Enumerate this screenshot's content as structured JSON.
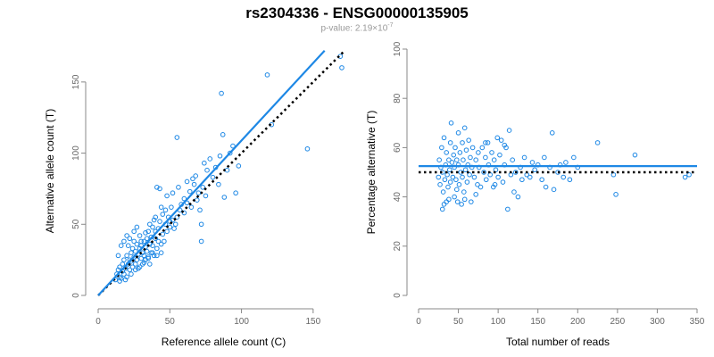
{
  "header": {
    "title": "rs2304336 - ENSG00000135905",
    "subtitle_prefix": "p-value: 2.19×10",
    "subtitle_exponent": "-7"
  },
  "colors": {
    "points": "#1e88e5",
    "fit_line": "#1e88e5",
    "reference_line": "#000000",
    "axis": "#888888"
  },
  "chart_data": [
    {
      "type": "scatter",
      "xlabel": "Reference allele count (C)",
      "ylabel": "Alternative allele count (T)",
      "xlim": [
        0,
        175
      ],
      "ylim": [
        0,
        175
      ],
      "x_ticks": [
        0,
        50,
        100,
        150
      ],
      "y_ticks": [
        0,
        50,
        100,
        150
      ],
      "points": [
        [
          12,
          11
        ],
        [
          13,
          15
        ],
        [
          14,
          18
        ],
        [
          15,
          13
        ],
        [
          15,
          20
        ],
        [
          16,
          12
        ],
        [
          17,
          17
        ],
        [
          17,
          22
        ],
        [
          18,
          15
        ],
        [
          18,
          25
        ],
        [
          19,
          19
        ],
        [
          20,
          13
        ],
        [
          20,
          28
        ],
        [
          21,
          22
        ],
        [
          21,
          35
        ],
        [
          22,
          18
        ],
        [
          22,
          40
        ],
        [
          23,
          24
        ],
        [
          23,
          30
        ],
        [
          24,
          20
        ],
        [
          24,
          33
        ],
        [
          25,
          27
        ],
        [
          25,
          38
        ],
        [
          26,
          22
        ],
        [
          26,
          31
        ],
        [
          27,
          25
        ],
        [
          27,
          36
        ],
        [
          28,
          29
        ],
        [
          28,
          19
        ],
        [
          29,
          33
        ],
        [
          29,
          42
        ],
        [
          30,
          26
        ],
        [
          30,
          35
        ],
        [
          31,
          30
        ],
        [
          31,
          22
        ],
        [
          32,
          38
        ],
        [
          32,
          28
        ],
        [
          33,
          34
        ],
        [
          33,
          25
        ],
        [
          34,
          40
        ],
        [
          34,
          31
        ],
        [
          35,
          27
        ],
        [
          35,
          45
        ],
        [
          36,
          36
        ],
        [
          36,
          22
        ],
        [
          37,
          41
        ],
        [
          37,
          30
        ],
        [
          38,
          48
        ],
        [
          38,
          35
        ],
        [
          39,
          28
        ],
        [
          39,
          53
        ],
        [
          40,
          40
        ],
        [
          40,
          45
        ],
        [
          41,
          33
        ],
        [
          41,
          76
        ],
        [
          42,
          47
        ],
        [
          42,
          38
        ],
        [
          43,
          52
        ],
        [
          43,
          75
        ],
        [
          44,
          30
        ],
        [
          45,
          43
        ],
        [
          45,
          57
        ],
        [
          46,
          38
        ],
        [
          47,
          60
        ],
        [
          47,
          50
        ],
        [
          48,
          45
        ],
        [
          49,
          55
        ],
        [
          50,
          48
        ],
        [
          50,
          52
        ],
        [
          51,
          62
        ],
        [
          52,
          53
        ],
        [
          53,
          47
        ],
        [
          54,
          50
        ],
        [
          55,
          55
        ],
        [
          55,
          111
        ],
        [
          57,
          60
        ],
        [
          58,
          64
        ],
        [
          60,
          58
        ],
        [
          60,
          68
        ],
        [
          62,
          65
        ],
        [
          64,
          73
        ],
        [
          65,
          62
        ],
        [
          66,
          82
        ],
        [
          67,
          78
        ],
        [
          68,
          84
        ],
        [
          69,
          67
        ],
        [
          70,
          72
        ],
        [
          71,
          60
        ],
        [
          72,
          50
        ],
        [
          72,
          38
        ],
        [
          73,
          76
        ],
        [
          74,
          93
        ],
        [
          75,
          70
        ],
        [
          76,
          88
        ],
        [
          78,
          96
        ],
        [
          80,
          83
        ],
        [
          82,
          90
        ],
        [
          84,
          78
        ],
        [
          85,
          98
        ],
        [
          86,
          142
        ],
        [
          87,
          113
        ],
        [
          88,
          69
        ],
        [
          90,
          88
        ],
        [
          92,
          100
        ],
        [
          94,
          105
        ],
        [
          96,
          72
        ],
        [
          98,
          91
        ],
        [
          118,
          155
        ],
        [
          121,
          120
        ],
        [
          146,
          103
        ],
        [
          169,
          168
        ],
        [
          170,
          160
        ],
        [
          14,
          28
        ],
        [
          16,
          35
        ],
        [
          18,
          38
        ],
        [
          20,
          42
        ],
        [
          22,
          25
        ],
        [
          25,
          45
        ],
        [
          27,
          48
        ],
        [
          30,
          38
        ],
        [
          33,
          44
        ],
        [
          36,
          50
        ],
        [
          40,
          55
        ],
        [
          44,
          62
        ],
        [
          48,
          70
        ],
        [
          52,
          72
        ],
        [
          56,
          76
        ],
        [
          62,
          80
        ],
        [
          15,
          10
        ],
        [
          19,
          11
        ],
        [
          23,
          15
        ],
        [
          26,
          18
        ],
        [
          29,
          20
        ],
        [
          32,
          23
        ],
        [
          35,
          26
        ],
        [
          38,
          30
        ],
        [
          41,
          28
        ],
        [
          44,
          36
        ]
      ],
      "fit_line": {
        "x": [
          0,
          158
        ],
        "y": [
          0,
          172
        ]
      },
      "reference_line": {
        "x": [
          0,
          172
        ],
        "y": [
          0,
          172
        ]
      }
    },
    {
      "type": "scatter",
      "xlabel": "Total number of reads",
      "ylabel": "Percentage alternative (T)",
      "xlim": [
        0,
        350
      ],
      "ylim": [
        0,
        100
      ],
      "x_ticks": [
        0,
        50,
        100,
        150,
        200,
        250,
        300,
        350
      ],
      "y_ticks": [
        0,
        20,
        40,
        60,
        80,
        100
      ],
      "points": [
        [
          25,
          48
        ],
        [
          26,
          55
        ],
        [
          27,
          45
        ],
        [
          28,
          52
        ],
        [
          29,
          60
        ],
        [
          30,
          35
        ],
        [
          30,
          50
        ],
        [
          31,
          42
        ],
        [
          32,
          64
        ],
        [
          33,
          47
        ],
        [
          34,
          53
        ],
        [
          35,
          38
        ],
        [
          35,
          58
        ],
        [
          36,
          49
        ],
        [
          37,
          44
        ],
        [
          38,
          55
        ],
        [
          39,
          51
        ],
        [
          40,
          62
        ],
        [
          40,
          46
        ],
        [
          41,
          70
        ],
        [
          42,
          54
        ],
        [
          43,
          48
        ],
        [
          44,
          57
        ],
        [
          45,
          40
        ],
        [
          45,
          52
        ],
        [
          46,
          60
        ],
        [
          47,
          47
        ],
        [
          48,
          55
        ],
        [
          49,
          38
        ],
        [
          50,
          53
        ],
        [
          50,
          66
        ],
        [
          51,
          45
        ],
        [
          52,
          58
        ],
        [
          53,
          50
        ],
        [
          54,
          37
        ],
        [
          55,
          62
        ],
        [
          55,
          48
        ],
        [
          56,
          55
        ],
        [
          57,
          42
        ],
        [
          58,
          68
        ],
        [
          59,
          51
        ],
        [
          60,
          59
        ],
        [
          61,
          46
        ],
        [
          62,
          53
        ],
        [
          63,
          63
        ],
        [
          64,
          49
        ],
        [
          65,
          56
        ],
        [
          66,
          38
        ],
        [
          67,
          52
        ],
        [
          68,
          60
        ],
        [
          70,
          48
        ],
        [
          72,
          55
        ],
        [
          74,
          45
        ],
        [
          75,
          58
        ],
        [
          76,
          52
        ],
        [
          78,
          44
        ],
        [
          80,
          60
        ],
        [
          82,
          50
        ],
        [
          84,
          56
        ],
        [
          85,
          47
        ],
        [
          87,
          62
        ],
        [
          88,
          53
        ],
        [
          90,
          49
        ],
        [
          92,
          58
        ],
        [
          94,
          44
        ],
        [
          95,
          55
        ],
        [
          97,
          51
        ],
        [
          99,
          64
        ],
        [
          100,
          48
        ],
        [
          102,
          57
        ],
        [
          104,
          63
        ],
        [
          106,
          46
        ],
        [
          108,
          53
        ],
        [
          110,
          60
        ],
        [
          112,
          35
        ],
        [
          114,
          67
        ],
        [
          116,
          49
        ],
        [
          118,
          55
        ],
        [
          120,
          42
        ],
        [
          122,
          50
        ],
        [
          125,
          40
        ],
        [
          128,
          52
        ],
        [
          130,
          47
        ],
        [
          133,
          56
        ],
        [
          136,
          49
        ],
        [
          140,
          48
        ],
        [
          143,
          54
        ],
        [
          146,
          51
        ],
        [
          150,
          53
        ],
        [
          155,
          47
        ],
        [
          158,
          56
        ],
        [
          160,
          44
        ],
        [
          165,
          52
        ],
        [
          168,
          66
        ],
        [
          170,
          43
        ],
        [
          175,
          50
        ],
        [
          178,
          53
        ],
        [
          182,
          48
        ],
        [
          185,
          54
        ],
        [
          190,
          47
        ],
        [
          195,
          56
        ],
        [
          200,
          52
        ],
        [
          225,
          62
        ],
        [
          245,
          49
        ],
        [
          248,
          41
        ],
        [
          272,
          57
        ],
        [
          335,
          48
        ],
        [
          340,
          49
        ],
        [
          32,
          37
        ],
        [
          38,
          39
        ],
        [
          48,
          43
        ],
        [
          58,
          39
        ],
        [
          72,
          41
        ],
        [
          84,
          62
        ],
        [
          96,
          45
        ],
        [
          108,
          61
        ]
      ],
      "fit_line": {
        "x": [
          0,
          350
        ],
        "y": [
          52.5,
          52.5
        ]
      },
      "reference_line": {
        "x": [
          0,
          350
        ],
        "y": [
          50,
          50
        ]
      }
    }
  ]
}
